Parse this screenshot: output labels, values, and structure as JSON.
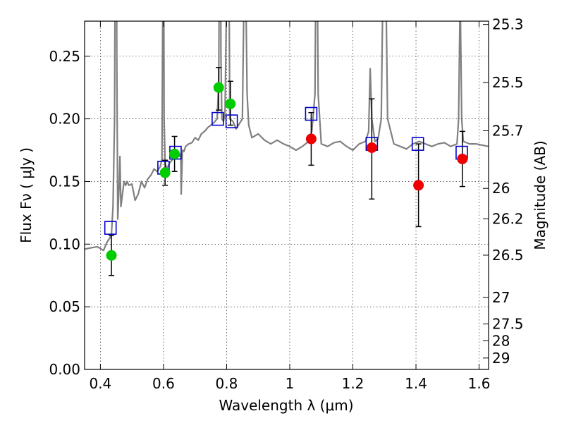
{
  "chart_data": {
    "type": "scatter",
    "xlabel": "Wavelength  λ (μm)",
    "ylabel": "Flux  Fν ( μJy )",
    "ylabel_right": "Magnitude (AB)",
    "xlim": [
      0.35,
      1.63
    ],
    "ylim": [
      0.0,
      0.278
    ],
    "grid": true,
    "x_ticks": [
      0.4,
      0.6,
      0.8,
      1.0,
      1.2,
      1.4,
      1.6
    ],
    "x_tick_labels": [
      "0.4",
      "0.6",
      "0.8",
      "1",
      "1.2",
      "1.4",
      "1.6"
    ],
    "y_ticks": [
      0.0,
      0.05,
      0.1,
      0.15,
      0.2,
      0.25
    ],
    "y_tick_labels": [
      "0.00",
      "0.05",
      "0.10",
      "0.15",
      "0.20",
      "0.25"
    ],
    "right_ticks": [
      {
        "flux": 0.2754,
        "label": "25.3"
      },
      {
        "flux": 0.229,
        "label": "25.5"
      },
      {
        "flux": 0.1905,
        "label": "25.7"
      },
      {
        "flux": 0.1445,
        "label": "26"
      },
      {
        "flux": 0.1202,
        "label": "26.2"
      },
      {
        "flux": 0.0912,
        "label": "26.5"
      },
      {
        "flux": 0.0575,
        "label": "27"
      },
      {
        "flux": 0.0363,
        "label": "27.5"
      },
      {
        "flux": 0.0229,
        "label": "28"
      },
      {
        "flux": 0.0091,
        "label": "29"
      }
    ],
    "model_spectrum": {
      "color": "#808080",
      "x": [
        0.35,
        0.37,
        0.39,
        0.41,
        0.42,
        0.43,
        0.435,
        0.44,
        0.445,
        0.448,
        0.45,
        0.452,
        0.455,
        0.46,
        0.462,
        0.465,
        0.47,
        0.475,
        0.48,
        0.485,
        0.49,
        0.5,
        0.51,
        0.52,
        0.53,
        0.54,
        0.55,
        0.56,
        0.57,
        0.58,
        0.59,
        0.595,
        0.598,
        0.6,
        0.602,
        0.605,
        0.61,
        0.62,
        0.63,
        0.64,
        0.65,
        0.655,
        0.656,
        0.66,
        0.665,
        0.67,
        0.68,
        0.69,
        0.7,
        0.71,
        0.72,
        0.73,
        0.74,
        0.75,
        0.76,
        0.77,
        0.775,
        0.778,
        0.78,
        0.782,
        0.785,
        0.79,
        0.795,
        0.8,
        0.805,
        0.808,
        0.81,
        0.82,
        0.83,
        0.84,
        0.85,
        0.855,
        0.86,
        0.865,
        0.87,
        0.88,
        0.9,
        0.92,
        0.94,
        0.96,
        0.98,
        1.0,
        1.02,
        1.04,
        1.06,
        1.07,
        1.08,
        1.085,
        1.09,
        1.1,
        1.12,
        1.14,
        1.16,
        1.18,
        1.2,
        1.22,
        1.24,
        1.25,
        1.255,
        1.26,
        1.27,
        1.28,
        1.29,
        1.295,
        1.3,
        1.305,
        1.31,
        1.33,
        1.35,
        1.37,
        1.39,
        1.41,
        1.43,
        1.45,
        1.47,
        1.49,
        1.51,
        1.53,
        1.535,
        1.54,
        1.545,
        1.55,
        1.57,
        1.59,
        1.61,
        1.63
      ],
      "y": [
        0.096,
        0.097,
        0.098,
        0.095,
        0.101,
        0.105,
        0.108,
        0.13,
        0.2,
        0.4,
        0.5,
        0.25,
        0.12,
        0.15,
        0.17,
        0.13,
        0.14,
        0.15,
        0.147,
        0.15,
        0.147,
        0.148,
        0.135,
        0.14,
        0.15,
        0.145,
        0.152,
        0.155,
        0.16,
        0.158,
        0.162,
        0.168,
        0.3,
        0.4,
        0.2,
        0.165,
        0.16,
        0.165,
        0.168,
        0.172,
        0.17,
        0.172,
        0.14,
        0.175,
        0.174,
        0.178,
        0.18,
        0.181,
        0.185,
        0.183,
        0.188,
        0.19,
        0.193,
        0.195,
        0.197,
        0.2,
        0.23,
        0.4,
        0.4,
        0.25,
        0.2,
        0.198,
        0.205,
        0.3,
        0.4,
        0.3,
        0.2,
        0.198,
        0.192,
        0.196,
        0.2,
        0.3,
        0.32,
        0.22,
        0.195,
        0.185,
        0.188,
        0.183,
        0.18,
        0.183,
        0.18,
        0.178,
        0.175,
        0.178,
        0.182,
        0.19,
        0.22,
        0.4,
        0.22,
        0.18,
        0.178,
        0.181,
        0.182,
        0.178,
        0.175,
        0.18,
        0.182,
        0.19,
        0.24,
        0.2,
        0.182,
        0.184,
        0.2,
        0.3,
        0.4,
        0.3,
        0.2,
        0.18,
        0.178,
        0.176,
        0.18,
        0.182,
        0.18,
        0.178,
        0.18,
        0.181,
        0.178,
        0.18,
        0.2,
        0.3,
        0.2,
        0.182,
        0.18,
        0.18,
        0.179,
        0.178
      ]
    },
    "series": [
      {
        "marker": "square-open",
        "color": "#0000cc",
        "x": [
          0.432,
          0.6,
          0.638,
          0.772,
          0.816,
          1.068,
          1.26,
          1.406,
          1.545
        ],
        "y": [
          0.113,
          0.161,
          0.173,
          0.2,
          0.198,
          0.204,
          0.18,
          0.18,
          0.173
        ]
      },
      {
        "marker": "circle",
        "color": "#00cc00",
        "x": [
          0.435,
          0.605,
          0.635,
          0.775,
          0.812
        ],
        "y": [
          0.091,
          0.157,
          0.172,
          0.225,
          0.212
        ],
        "yerr_low": [
          0.075,
          0.147,
          0.158,
          0.207,
          0.195
        ],
        "yerr_high": [
          0.107,
          0.167,
          0.186,
          0.241,
          0.23
        ]
      },
      {
        "marker": "circle",
        "color": "#ee0000",
        "x": [
          1.068,
          1.26,
          1.408,
          1.547
        ],
        "y": [
          0.184,
          0.177,
          0.147,
          0.168
        ],
        "yerr_low": [
          0.163,
          0.136,
          0.114,
          0.146
        ],
        "yerr_high": [
          0.205,
          0.216,
          0.18,
          0.19
        ]
      }
    ]
  }
}
